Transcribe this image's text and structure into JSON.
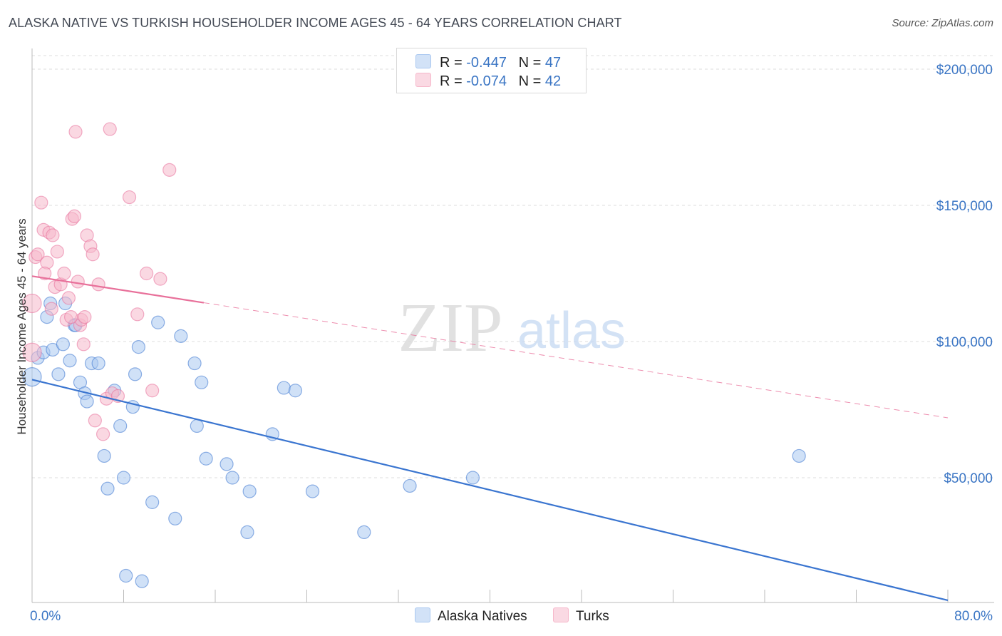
{
  "title": "ALASKA NATIVE VS TURKISH HOUSEHOLDER INCOME AGES 45 - 64 YEARS CORRELATION CHART",
  "source": "Source: ZipAtlas.com",
  "watermark": {
    "zip": "ZIP",
    "atlas": "atlas"
  },
  "legend": {
    "rows": [
      {
        "r_label": "R = ",
        "r_value": "-0.447",
        "n_label": "N = ",
        "n_value": "47",
        "color": "#aac8f0"
      },
      {
        "r_label": "R = ",
        "r_value": "-0.074",
        "n_label": "N = ",
        "n_value": "42",
        "color": "#f6b8cb"
      }
    ]
  },
  "bottom_legend": [
    {
      "label": "Alaska Natives",
      "color": "#aac8f0"
    },
    {
      "label": "Turks",
      "color": "#f6b8cb"
    }
  ],
  "chart_data": {
    "type": "scatter",
    "title": "ALASKA NATIVE VS TURKISH HOUSEHOLDER INCOME AGES 45 - 64 YEARS CORRELATION CHART",
    "xlabel": "",
    "ylabel": "Householder Income Ages 45 - 64 years",
    "xlim": [
      0,
      80
    ],
    "ylim": [
      0,
      210000
    ],
    "x_tick_labels": [
      "0.0%",
      "80.0%"
    ],
    "y_ticks": [
      50000,
      100000,
      150000,
      200000
    ],
    "y_tick_labels": [
      "$50,000",
      "$100,000",
      "$150,000",
      "$200,000"
    ],
    "series": [
      {
        "name": "Alaska Natives",
        "color": "#3a75d0",
        "fill": "#aac8f0",
        "trend": {
          "x0": 0,
          "y0": 86000,
          "x1": 80,
          "y1": 5000,
          "dashed_from": null
        },
        "points": [
          [
            0.0,
            87000
          ],
          [
            0.5,
            94000
          ],
          [
            1.0,
            96000
          ],
          [
            1.3,
            109000
          ],
          [
            1.6,
            114000
          ],
          [
            1.8,
            97000
          ],
          [
            2.3,
            88000
          ],
          [
            2.7,
            99000
          ],
          [
            2.9,
            114000
          ],
          [
            3.3,
            93000
          ],
          [
            3.7,
            106000
          ],
          [
            3.8,
            106000
          ],
          [
            4.2,
            85000
          ],
          [
            4.6,
            81000
          ],
          [
            4.8,
            78000
          ],
          [
            5.2,
            92000
          ],
          [
            5.8,
            92000
          ],
          [
            6.3,
            58000
          ],
          [
            6.6,
            46000
          ],
          [
            7.2,
            82000
          ],
          [
            7.7,
            69000
          ],
          [
            8.0,
            50000
          ],
          [
            8.2,
            14000
          ],
          [
            8.8,
            76000
          ],
          [
            9.0,
            88000
          ],
          [
            9.3,
            98000
          ],
          [
            9.6,
            12000
          ],
          [
            10.5,
            41000
          ],
          [
            11.0,
            107000
          ],
          [
            12.5,
            35000
          ],
          [
            13.0,
            102000
          ],
          [
            14.2,
            92000
          ],
          [
            14.4,
            69000
          ],
          [
            14.8,
            85000
          ],
          [
            15.2,
            57000
          ],
          [
            17.0,
            55000
          ],
          [
            17.5,
            50000
          ],
          [
            18.8,
            30000
          ],
          [
            19.0,
            45000
          ],
          [
            21.0,
            66000
          ],
          [
            22.0,
            83000
          ],
          [
            23.0,
            82000
          ],
          [
            24.5,
            45000
          ],
          [
            29.0,
            30000
          ],
          [
            33.0,
            47000
          ],
          [
            38.5,
            50000
          ],
          [
            67.0,
            58000
          ]
        ]
      },
      {
        "name": "Turks",
        "color": "#e8709a",
        "fill": "#f6b8cb",
        "trend": {
          "x0": 0,
          "y0": 124000,
          "x1": 80,
          "y1": 72000,
          "solid_until": 15
        },
        "points": [
          [
            0.0,
            114000
          ],
          [
            0.0,
            96000
          ],
          [
            0.3,
            131000
          ],
          [
            0.5,
            132000
          ],
          [
            0.8,
            151000
          ],
          [
            1.0,
            141000
          ],
          [
            1.3,
            129000
          ],
          [
            1.5,
            140000
          ],
          [
            1.7,
            112000
          ],
          [
            1.8,
            139000
          ],
          [
            2.0,
            120000
          ],
          [
            2.2,
            133000
          ],
          [
            2.5,
            121000
          ],
          [
            2.8,
            125000
          ],
          [
            3.0,
            108000
          ],
          [
            3.2,
            116000
          ],
          [
            3.5,
            145000
          ],
          [
            3.7,
            146000
          ],
          [
            3.8,
            177000
          ],
          [
            4.0,
            122000
          ],
          [
            4.2,
            106000
          ],
          [
            4.3,
            108000
          ],
          [
            4.5,
            99000
          ],
          [
            4.6,
            109000
          ],
          [
            4.8,
            139000
          ],
          [
            5.1,
            135000
          ],
          [
            5.3,
            132000
          ],
          [
            5.5,
            71000
          ],
          [
            5.8,
            121000
          ],
          [
            6.2,
            66000
          ],
          [
            6.5,
            79000
          ],
          [
            6.8,
            178000
          ],
          [
            7.0,
            81000
          ],
          [
            7.5,
            80000
          ],
          [
            8.5,
            153000
          ],
          [
            9.2,
            110000
          ],
          [
            10.0,
            125000
          ],
          [
            10.5,
            82000
          ],
          [
            11.2,
            123000
          ],
          [
            12.0,
            163000
          ],
          [
            1.1,
            125000
          ],
          [
            3.4,
            109000
          ]
        ]
      }
    ]
  }
}
